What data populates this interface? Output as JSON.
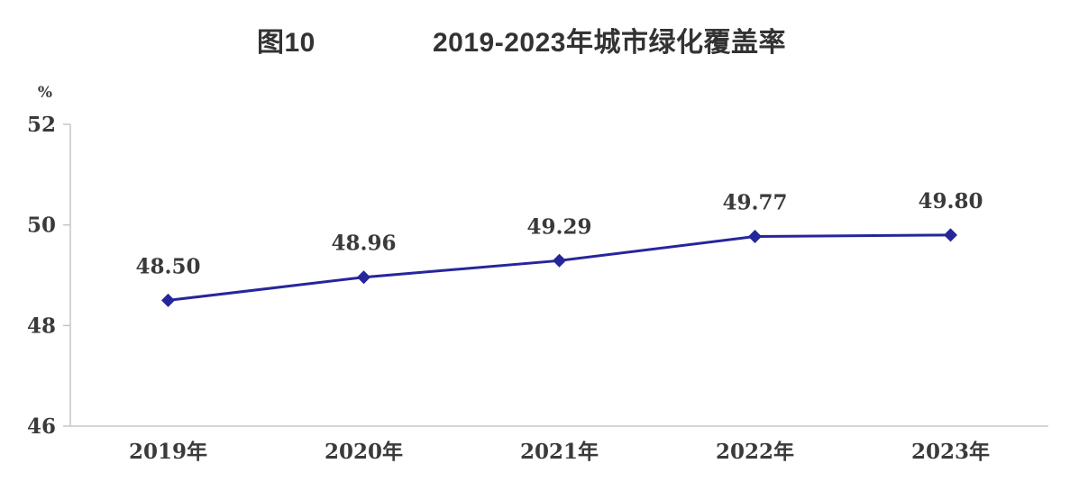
{
  "chart_data": {
    "type": "line",
    "figure_label": "图10",
    "title": "2019-2023年城市绿化覆盖率",
    "unit_label": "%",
    "categories": [
      "2019年",
      "2020年",
      "2021年",
      "2022年",
      "2023年"
    ],
    "series": [
      {
        "name": "城市绿化覆盖率",
        "values": [
          48.5,
          48.96,
          49.29,
          49.77,
          49.8
        ],
        "data_labels": [
          "48.50",
          "48.96",
          "49.29",
          "49.77",
          "49.80"
        ]
      }
    ],
    "xlabel": "",
    "ylabel": "%",
    "ylim": [
      46,
      52
    ],
    "yticks": [
      46,
      48,
      50,
      52
    ],
    "grid": false,
    "legend_position": "none",
    "marker": "diamond",
    "colors": {
      "line": "#26269B",
      "marker": "#26269B",
      "axis": "#C6C6C6",
      "tick_text": "#3A3A3A",
      "label_text": "#3A3A3A",
      "title_text": "#333333",
      "background": "#FFFFFF"
    }
  }
}
